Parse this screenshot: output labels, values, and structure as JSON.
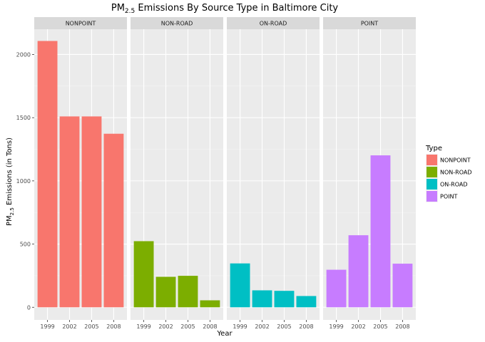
{
  "chart_data": {
    "type": "bar",
    "title": {
      "prefix": "PM",
      "subscript": "2.5",
      "suffix": " Emissions By Source Type in Baltimore City"
    },
    "xlabel": "Year",
    "ylabel": {
      "prefix": "PM",
      "subscript": "2.5",
      "suffix": " Emissions (in Tons)"
    },
    "categories": [
      "1999",
      "2002",
      "2005",
      "2008"
    ],
    "ylim": [
      -100,
      2200
    ],
    "yticks": [
      0,
      500,
      1000,
      1500,
      2000
    ],
    "facet_by": "Type",
    "legend": {
      "title": "Type",
      "position": "right"
    },
    "series": [
      {
        "name": "NONPOINT",
        "color": "#F8766D",
        "values": [
          2107,
          1510,
          1510,
          1373
        ]
      },
      {
        "name": "NON-ROAD",
        "color": "#7CAE00",
        "values": [
          523,
          241,
          249,
          55
        ]
      },
      {
        "name": "ON-ROAD",
        "color": "#00BFC4",
        "values": [
          347,
          134,
          130,
          89
        ]
      },
      {
        "name": "POINT",
        "color": "#C77CFF",
        "values": [
          297,
          570,
          1202,
          345
        ]
      }
    ]
  }
}
